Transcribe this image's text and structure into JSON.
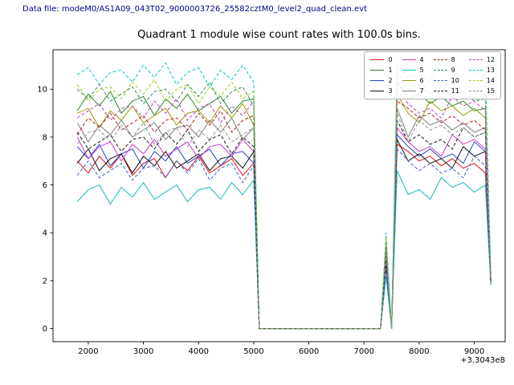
{
  "header": {
    "data_file_label": "Data file: modeM0/AS1A09_043T02_9000003726_25582cztM0_level2_quad_clean.evt",
    "data_file_color": "#00008b"
  },
  "chart_data": {
    "type": "line",
    "title": "Quadrant 1 module wise count rates with 100.0s bins.",
    "xlabel": "",
    "ylabel": "",
    "x_offset_text": "+3.3043e8",
    "xlim": [
      1360,
      9560
    ],
    "ylim": [
      -0.55,
      11.65
    ],
    "x_ticks": [
      2000,
      3000,
      4000,
      5000,
      6000,
      7000,
      8000,
      9000
    ],
    "y_ticks": [
      0,
      2,
      4,
      6,
      8,
      10
    ],
    "grid": false,
    "legend_position": "upper right",
    "legend_columns": 4,
    "x": [
      1800,
      2000,
      2200,
      2400,
      2600,
      2800,
      3000,
      3200,
      3400,
      3600,
      3800,
      4000,
      4200,
      4400,
      4600,
      4800,
      5000,
      5100,
      5300,
      5500,
      5700,
      5900,
      6100,
      6300,
      6500,
      6700,
      6900,
      7100,
      7300,
      7400,
      7500,
      7600,
      7800,
      8000,
      8200,
      8400,
      8600,
      8800,
      9000,
      9200,
      9300
    ],
    "series": [
      {
        "name": "0",
        "color": "#e01010",
        "dash": "solid",
        "values": [
          7.0,
          6.5,
          7.2,
          6.7,
          7.3,
          6.4,
          6.9,
          7.1,
          6.3,
          7.0,
          6.6,
          7.2,
          6.5,
          6.8,
          7.1,
          6.4,
          6.9,
          0,
          0,
          0,
          0,
          0,
          0,
          0,
          0,
          0,
          0,
          0,
          0,
          2.6,
          0,
          7.7,
          7.4,
          7.0,
          7.2,
          6.8,
          7.1,
          6.7,
          6.9,
          6.5,
          2.0
        ]
      },
      {
        "name": "1",
        "color": "#228b22",
        "dash": "solid",
        "values": [
          9.1,
          9.8,
          9.3,
          9.9,
          9.0,
          9.5,
          9.7,
          8.9,
          9.6,
          9.2,
          9.8,
          9.1,
          9.4,
          9.7,
          9.0,
          9.5,
          9.6,
          0,
          0,
          0,
          0,
          0,
          0,
          0,
          0,
          0,
          0,
          0,
          0,
          3.6,
          0,
          10.3,
          9.6,
          9.8,
          9.4,
          9.7,
          9.3,
          9.5,
          9.1,
          9.2,
          2.1
        ]
      },
      {
        "name": "2",
        "color": "#2244cc",
        "dash": "solid",
        "values": [
          7.6,
          7.1,
          7.7,
          6.8,
          7.3,
          7.5,
          6.7,
          7.4,
          7.0,
          7.6,
          6.9,
          7.2,
          7.5,
          6.8,
          7.3,
          7.4,
          6.9,
          0,
          0,
          0,
          0,
          0,
          0,
          0,
          0,
          0,
          0,
          0,
          0,
          2.7,
          0,
          8.1,
          7.6,
          7.2,
          7.5,
          7.1,
          7.3,
          6.9,
          7.8,
          7.4,
          1.9
        ]
      },
      {
        "name": "3",
        "color": "#101010",
        "dash": "solid",
        "values": [
          6.9,
          7.5,
          6.6,
          7.1,
          7.3,
          6.5,
          7.2,
          6.8,
          7.4,
          6.7,
          7.0,
          7.3,
          6.6,
          7.1,
          7.2,
          6.7,
          7.4,
          0,
          0,
          0,
          0,
          0,
          0,
          0,
          0,
          0,
          0,
          0,
          0,
          2.7,
          0,
          7.9,
          7.0,
          7.3,
          6.9,
          7.1,
          6.7,
          7.6,
          7.2,
          7.4,
          2.0
        ]
      },
      {
        "name": "4",
        "color": "#c837c8",
        "dash": "solid",
        "values": [
          8.0,
          7.1,
          7.6,
          7.8,
          7.0,
          7.7,
          7.3,
          7.9,
          7.2,
          7.5,
          7.8,
          7.1,
          7.6,
          7.7,
          7.2,
          7.9,
          7.4,
          0,
          0,
          0,
          0,
          0,
          0,
          0,
          0,
          0,
          0,
          0,
          0,
          2.9,
          0,
          8.4,
          7.8,
          7.4,
          7.6,
          7.2,
          8.1,
          7.7,
          7.9,
          7.5,
          2.2
        ]
      },
      {
        "name": "5",
        "color": "#16b8b8",
        "dash": "solid",
        "values": [
          5.3,
          5.8,
          6.0,
          5.2,
          5.9,
          5.5,
          6.1,
          5.4,
          5.7,
          6.0,
          5.3,
          5.8,
          5.9,
          5.4,
          6.1,
          5.6,
          6.2,
          0,
          0,
          0,
          0,
          0,
          0,
          0,
          0,
          0,
          0,
          0,
          0,
          2.2,
          0,
          6.6,
          5.6,
          5.8,
          5.4,
          6.3,
          5.9,
          6.1,
          5.7,
          6.0,
          1.8
        ]
      },
      {
        "name": "6",
        "color": "#999900",
        "dash": "solid",
        "values": [
          9.0,
          9.2,
          8.4,
          9.1,
          8.7,
          9.3,
          8.6,
          8.9,
          9.2,
          8.5,
          9.0,
          9.1,
          8.6,
          9.3,
          8.8,
          9.4,
          8.5,
          0,
          0,
          0,
          0,
          0,
          0,
          0,
          0,
          0,
          0,
          0,
          0,
          3.4,
          0,
          9.8,
          9.0,
          8.6,
          9.5,
          9.1,
          9.3,
          8.9,
          9.2,
          8.8,
          2.1
        ]
      },
      {
        "name": "7",
        "color": "#7f7f7f",
        "dash": "solid",
        "values": [
          8.6,
          7.8,
          8.5,
          8.1,
          8.7,
          8.0,
          8.3,
          8.6,
          7.9,
          8.4,
          8.5,
          8.0,
          8.7,
          8.2,
          8.8,
          7.9,
          8.4,
          0,
          0,
          0,
          0,
          0,
          0,
          0,
          0,
          0,
          0,
          0,
          0,
          3.2,
          0,
          9.2,
          8.0,
          8.9,
          8.5,
          8.7,
          8.3,
          8.6,
          8.2,
          8.4,
          2.0
        ]
      },
      {
        "name": "8",
        "color": "#b22222",
        "dash": "dashed",
        "values": [
          8.1,
          8.8,
          8.4,
          9.0,
          8.3,
          8.6,
          8.9,
          8.2,
          8.7,
          8.8,
          8.3,
          9.0,
          8.5,
          9.1,
          8.2,
          8.7,
          8.9,
          0,
          0,
          0,
          0,
          0,
          0,
          0,
          0,
          0,
          0,
          0,
          0,
          3.3,
          0,
          9.5,
          9.2,
          8.8,
          9.0,
          8.6,
          8.9,
          8.5,
          8.7,
          8.3,
          2.2
        ]
      },
      {
        "name": "9",
        "color": "#2e8b57",
        "dash": "dashed",
        "values": [
          10.0,
          9.6,
          10.2,
          9.5,
          9.8,
          10.1,
          9.4,
          9.9,
          10.0,
          9.5,
          10.2,
          9.7,
          10.3,
          9.4,
          9.9,
          10.1,
          9.3,
          0,
          0,
          0,
          0,
          0,
          0,
          0,
          0,
          0,
          0,
          0,
          0,
          3.7,
          0,
          10.7,
          10.0,
          10.2,
          9.8,
          10.1,
          9.7,
          9.9,
          9.5,
          9.6,
          2.3
        ]
      },
      {
        "name": "10",
        "color": "#3a5fcd",
        "dash": "dashed",
        "values": [
          6.4,
          7.0,
          6.3,
          6.6,
          6.9,
          6.2,
          6.7,
          6.8,
          6.3,
          7.0,
          6.5,
          7.1,
          6.2,
          6.7,
          6.9,
          6.1,
          6.8,
          0,
          0,
          0,
          0,
          0,
          0,
          0,
          0,
          0,
          0,
          0,
          0,
          2.5,
          0,
          7.5,
          7.0,
          6.6,
          6.9,
          6.5,
          6.7,
          6.3,
          7.2,
          6.8,
          1.9
        ]
      },
      {
        "name": "11",
        "color": "#1a1a1a",
        "dash": "dashed",
        "values": [
          8.2,
          7.5,
          7.8,
          8.1,
          7.4,
          7.9,
          8.0,
          7.5,
          8.2,
          7.7,
          8.3,
          7.4,
          7.9,
          8.1,
          7.3,
          8.0,
          7.6,
          0,
          0,
          0,
          0,
          0,
          0,
          0,
          0,
          0,
          0,
          0,
          0,
          3.0,
          0,
          8.7,
          7.8,
          8.1,
          7.7,
          7.9,
          7.5,
          8.4,
          8.0,
          8.2,
          2.0
        ]
      },
      {
        "name": "12",
        "color": "#c040c0",
        "dash": "dashed",
        "values": [
          8.8,
          9.1,
          9.4,
          8.7,
          9.2,
          9.3,
          8.8,
          9.5,
          9.0,
          9.6,
          8.7,
          9.2,
          9.4,
          8.6,
          9.3,
          8.9,
          9.5,
          0,
          0,
          0,
          0,
          0,
          0,
          0,
          0,
          0,
          0,
          0,
          0,
          3.5,
          0,
          10.0,
          9.4,
          9.0,
          9.2,
          8.8,
          9.7,
          9.3,
          9.5,
          9.1,
          2.2
        ]
      },
      {
        "name": "13",
        "color": "#00c5cd",
        "dash": "dashed",
        "values": [
          10.6,
          10.9,
          10.2,
          10.7,
          10.8,
          10.3,
          11.0,
          10.5,
          11.1,
          10.2,
          10.7,
          10.9,
          10.1,
          10.8,
          10.4,
          11.0,
          10.3,
          0,
          0,
          0,
          0,
          0,
          0,
          0,
          0,
          0,
          0,
          0,
          0,
          4.0,
          0,
          11.0,
          10.5,
          10.7,
          10.3,
          11.2,
          10.8,
          11.0,
          10.6,
          10.9,
          2.4
        ]
      },
      {
        "name": "14",
        "color": "#9acd32",
        "dash": "dashed",
        "values": [
          10.2,
          9.5,
          10.0,
          10.1,
          9.6,
          10.3,
          9.8,
          10.4,
          9.5,
          10.0,
          10.2,
          9.4,
          10.1,
          9.7,
          10.3,
          9.6,
          9.9,
          0,
          0,
          0,
          0,
          0,
          0,
          0,
          0,
          0,
          0,
          0,
          0,
          3.8,
          0,
          10.8,
          10.0,
          9.6,
          10.5,
          10.1,
          10.3,
          9.9,
          10.2,
          9.8,
          2.3
        ]
      },
      {
        "name": "15",
        "color": "#8f8f8f",
        "dash": "dashed",
        "values": [
          7.7,
          8.2,
          8.3,
          7.8,
          8.5,
          8.0,
          8.6,
          7.7,
          8.2,
          8.4,
          7.6,
          8.3,
          7.9,
          8.5,
          7.8,
          8.1,
          8.4,
          0,
          0,
          0,
          0,
          0,
          0,
          0,
          0,
          0,
          0,
          0,
          0,
          3.1,
          0,
          9.0,
          7.8,
          8.7,
          8.3,
          8.5,
          8.1,
          8.4,
          8.0,
          8.2,
          2.1
        ]
      }
    ]
  }
}
